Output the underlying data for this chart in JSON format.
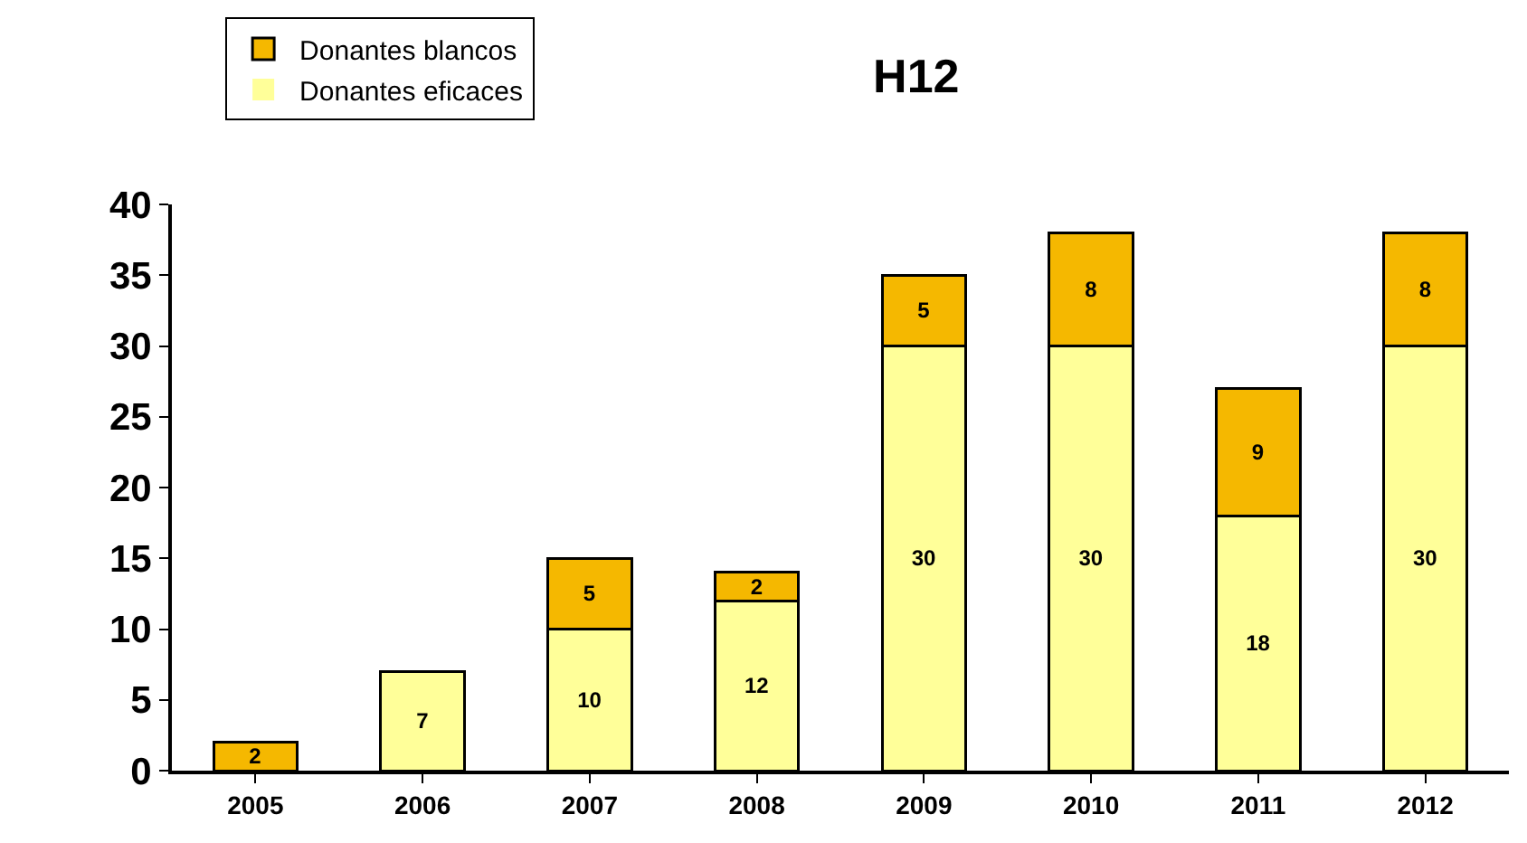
{
  "chart_data": {
    "type": "bar",
    "title": "H12",
    "stacked": true,
    "legend": "top left",
    "grid": false,
    "categories": [
      "2005",
      "2006",
      "2007",
      "2008",
      "2009",
      "2010",
      "2011",
      "2012"
    ],
    "ylim": [
      0,
      40
    ],
    "yticks": [
      0,
      5,
      10,
      15,
      20,
      25,
      30,
      35,
      40
    ],
    "series": [
      {
        "name": "Donantes eficaces",
        "color": "#ffff99",
        "values": [
          0,
          7,
          10,
          12,
          30,
          30,
          18,
          30
        ],
        "value_labels": [
          null,
          "7",
          "10",
          "12",
          "30",
          "30",
          "18",
          "30"
        ]
      },
      {
        "name": "Donantes blancos",
        "color": "#f5b800",
        "values": [
          2,
          0,
          5,
          2,
          5,
          8,
          9,
          8
        ],
        "value_labels": [
          "2",
          null,
          "5",
          "2",
          "5",
          "8",
          "9",
          "8"
        ]
      }
    ]
  }
}
